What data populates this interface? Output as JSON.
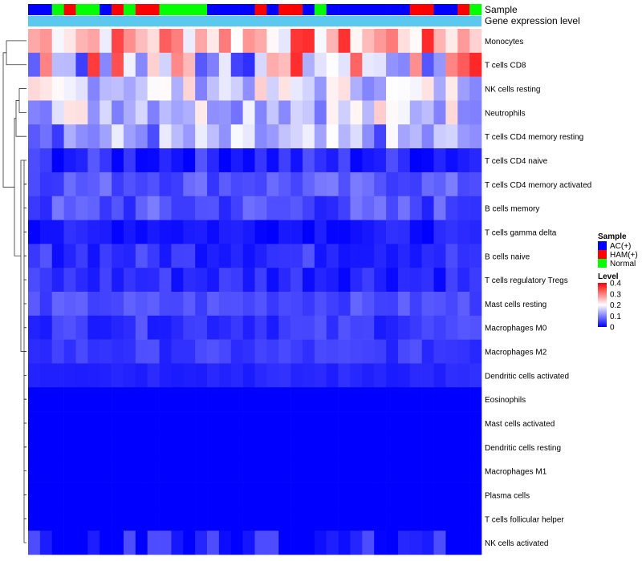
{
  "chart_data": {
    "type": "heatmap",
    "title": "",
    "annotation_track_labels": [
      "Sample",
      "Gene expression level"
    ],
    "gene_expression_track_color": "#5bc8f0",
    "columns": 38,
    "sample_groups": [
      "AC(+)",
      "AC(+)",
      "Normal",
      "HAM(+)",
      "Normal",
      "Normal",
      "AC(+)",
      "HAM(+)",
      "Normal",
      "HAM(+)",
      "HAM(+)",
      "Normal",
      "Normal",
      "Normal",
      "Normal",
      "AC(+)",
      "AC(+)",
      "AC(+)",
      "AC(+)",
      "HAM(+)",
      "AC(+)",
      "HAM(+)",
      "HAM(+)",
      "AC(+)",
      "Normal",
      "AC(+)",
      "AC(+)",
      "AC(+)",
      "AC(+)",
      "AC(+)",
      "AC(+)",
      "AC(+)",
      "HAM(+)",
      "HAM(+)",
      "AC(+)",
      "AC(+)",
      "HAM(+)",
      "Normal"
    ],
    "rows": [
      "Monocytes",
      "T cells CD8",
      "NK cells resting",
      "Neutrophils",
      "T cells CD4 memory resting",
      "T cells CD4 naive",
      "T cells CD4 memory activated",
      "B cells memory",
      "T cells gamma delta",
      "B cells naive",
      "T cells regulatory  Tregs",
      "Mast cells resting",
      "Macrophages M0",
      "Macrophages M2",
      "Dendritic cells activated",
      "Eosinophils",
      "Mast cells activated",
      "Dendritic cells resting",
      "Macrophages M1",
      "Plasma cells",
      "T cells follicular helper",
      "NK cells activated"
    ],
    "row_profiles": {
      "base": [
        0.27,
        0.2,
        0.17,
        0.17,
        0.12,
        0.03,
        0.07,
        0.06,
        0.02,
        0.04,
        0.035,
        0.06,
        0.045,
        0.045,
        0.03,
        0.0,
        0.0,
        0.0,
        0.0,
        0.0,
        0.0,
        0.0
      ],
      "spread": [
        0.1,
        0.18,
        0.07,
        0.08,
        0.08,
        0.04,
        0.03,
        0.04,
        0.02,
        0.03,
        0.03,
        0.02,
        0.025,
        0.02,
        0.01,
        0.0,
        0.0,
        0.0,
        0.0,
        0.0,
        0.0,
        0.03
      ]
    },
    "legend": {
      "sample": {
        "title": "Sample",
        "entries": [
          {
            "label": "AC(+)",
            "color": "#0000ff"
          },
          {
            "label": "HAM(+)",
            "color": "#ff0000"
          },
          {
            "label": "Normal",
            "color": "#00ff00"
          }
        ]
      },
      "level": {
        "title": "Level",
        "min": 0,
        "max": 0.4,
        "ticks": [
          "0.4",
          "0.3",
          "0.2",
          "0.1",
          "0"
        ],
        "color_low": "#0000ff",
        "color_mid": "#ffffff",
        "color_high": "#ff0000",
        "midpoint": 0.2
      }
    },
    "dendrogram": "hierarchical clustering of rows"
  }
}
